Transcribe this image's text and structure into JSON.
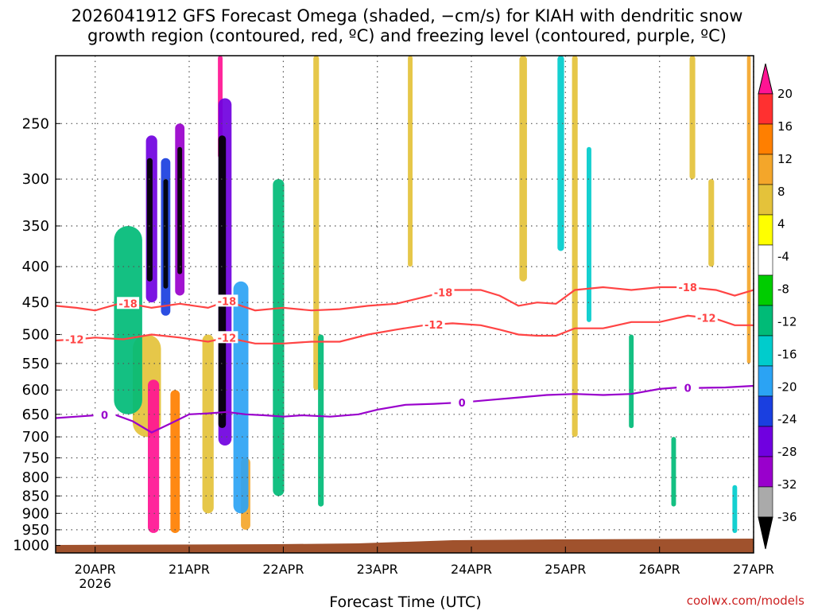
{
  "chart_data": {
    "type": "heatmap",
    "title_line1": "2026041912 GFS Forecast Omega (shaded, −cm/s) for KIAH with dendritic snow",
    "title_line2": "growth region (contoured, red, ºC) and freezing level (contoured, purple, ºC)",
    "xlabel": "Forecast Time (UTC)",
    "ylabel": "",
    "credit": "coolwx.com/models",
    "x_ticks": [
      {
        "value": 0,
        "label": "20APR",
        "sub": "2026"
      },
      {
        "value": 1,
        "label": "21APR",
        "sub": ""
      },
      {
        "value": 2,
        "label": "22APR",
        "sub": ""
      },
      {
        "value": 3,
        "label": "23APR",
        "sub": ""
      },
      {
        "value": 4,
        "label": "24APR",
        "sub": ""
      },
      {
        "value": 5,
        "label": "25APR",
        "sub": ""
      },
      {
        "value": 6,
        "label": "26APR",
        "sub": ""
      },
      {
        "value": 7,
        "label": "27APR",
        "sub": ""
      }
    ],
    "xlim": [
      -0.42,
      7.0
    ],
    "y_ticks": [
      "250",
      "300",
      "350",
      "400",
      "450",
      "500",
      "550",
      "600",
      "650",
      "700",
      "750",
      "800",
      "850",
      "900",
      "950",
      "1000"
    ],
    "ylim": [
      200,
      1025
    ],
    "grid": true,
    "colorbar": {
      "labels": [
        "20",
        "16",
        "12",
        "8",
        "4",
        "-4",
        "-8",
        "-12",
        "-16",
        "-20",
        "-24",
        "-28",
        "-32",
        "-36"
      ],
      "colors": [
        "#ff1493",
        "#ff3030",
        "#ff7f00",
        "#f4a62a",
        "#e4c23a",
        "#ffff00",
        "#ffffff",
        "#00cc00",
        "#00bb77",
        "#00cccc",
        "#2ba3f4",
        "#1a3fe0",
        "#7000e0",
        "#9900cc",
        "#aaaaaa",
        "#000000"
      ]
    },
    "omega_features": [
      {
        "t": 0.58,
        "p1": 280,
        "p2": 420,
        "w": 0.06,
        "value": -36
      },
      {
        "t": 0.6,
        "p1": 260,
        "p2": 450,
        "w": 0.12,
        "value": -24
      },
      {
        "t": 0.75,
        "p1": 300,
        "p2": 430,
        "w": 0.05,
        "value": -36
      },
      {
        "t": 0.75,
        "p1": 280,
        "p2": 470,
        "w": 0.1,
        "value": -20
      },
      {
        "t": 0.9,
        "p1": 270,
        "p2": 410,
        "w": 0.05,
        "value": -36
      },
      {
        "t": 0.9,
        "p1": 250,
        "p2": 440,
        "w": 0.1,
        "value": -28
      },
      {
        "t": 1.35,
        "p1": 260,
        "p2": 680,
        "w": 0.08,
        "value": -36
      },
      {
        "t": 1.38,
        "p1": 230,
        "p2": 720,
        "w": 0.14,
        "value": -24
      },
      {
        "t": 1.55,
        "p1": 420,
        "p2": 900,
        "w": 0.16,
        "value": -16
      },
      {
        "t": 0.35,
        "p1": 350,
        "p2": 650,
        "w": 0.3,
        "value": -8
      },
      {
        "t": 1.95,
        "p1": 300,
        "p2": 850,
        "w": 0.12,
        "value": -8
      },
      {
        "t": 2.4,
        "p1": 500,
        "p2": 880,
        "w": 0.06,
        "value": -8
      },
      {
        "t": 0.62,
        "p1": 580,
        "p2": 960,
        "w": 0.12,
        "value": 20
      },
      {
        "t": 0.85,
        "p1": 600,
        "p2": 960,
        "w": 0.1,
        "value": 12
      },
      {
        "t": 1.33,
        "p1": 200,
        "p2": 280,
        "w": 0.05,
        "value": 20
      },
      {
        "t": 0.55,
        "p1": 500,
        "p2": 700,
        "w": 0.3,
        "value": 6
      },
      {
        "t": 1.2,
        "p1": 500,
        "p2": 900,
        "w": 0.12,
        "value": 6
      },
      {
        "t": 1.6,
        "p1": 750,
        "p2": 950,
        "w": 0.1,
        "value": 10
      },
      {
        "t": 2.35,
        "p1": 200,
        "p2": 600,
        "w": 0.06,
        "value": 5
      },
      {
        "t": 3.35,
        "p1": 200,
        "p2": 400,
        "w": 0.05,
        "value": 5
      },
      {
        "t": 4.55,
        "p1": 200,
        "p2": 420,
        "w": 0.08,
        "value": 5
      },
      {
        "t": 4.95,
        "p1": 200,
        "p2": 380,
        "w": 0.07,
        "value": -14
      },
      {
        "t": 5.1,
        "p1": 200,
        "p2": 700,
        "w": 0.06,
        "value": 5
      },
      {
        "t": 5.25,
        "p1": 270,
        "p2": 480,
        "w": 0.05,
        "value": -12
      },
      {
        "t": 5.7,
        "p1": 500,
        "p2": 680,
        "w": 0.05,
        "value": -8
      },
      {
        "t": 6.15,
        "p1": 700,
        "p2": 880,
        "w": 0.05,
        "value": -8
      },
      {
        "t": 6.35,
        "p1": 200,
        "p2": 300,
        "w": 0.06,
        "value": 5
      },
      {
        "t": 6.55,
        "p1": 300,
        "p2": 400,
        "w": 0.06,
        "value": 5
      },
      {
        "t": 6.8,
        "p1": 820,
        "p2": 960,
        "w": 0.05,
        "value": -14
      },
      {
        "t": 6.95,
        "p1": 200,
        "p2": 550,
        "w": 0.04,
        "value": 8
      }
    ],
    "series": [
      {
        "name": "-18",
        "color": "#ff4444",
        "label_positions": [
          0.35,
          1.4,
          3.7,
          6.3
        ],
        "x": [
          -0.42,
          -0.2,
          0.0,
          0.3,
          0.6,
          0.9,
          1.2,
          1.4,
          1.7,
          2.0,
          2.3,
          2.6,
          2.9,
          3.2,
          3.5,
          3.8,
          4.1,
          4.3,
          4.5,
          4.7,
          4.9,
          5.1,
          5.4,
          5.7,
          6.0,
          6.3,
          6.6,
          6.8,
          7.0
        ],
        "y": [
          455,
          458,
          462,
          450,
          458,
          452,
          458,
          448,
          462,
          458,
          462,
          460,
          455,
          452,
          442,
          432,
          432,
          440,
          455,
          450,
          452,
          432,
          428,
          432,
          428,
          428,
          432,
          440,
          432
        ]
      },
      {
        "name": "-12",
        "color": "#ff4444",
        "label_positions": [
          -0.22,
          1.4,
          3.6,
          6.5
        ],
        "x": [
          -0.42,
          -0.2,
          0.0,
          0.3,
          0.6,
          0.9,
          1.2,
          1.4,
          1.7,
          2.0,
          2.3,
          2.6,
          2.9,
          3.2,
          3.5,
          3.8,
          4.1,
          4.3,
          4.5,
          4.7,
          4.9,
          5.1,
          5.4,
          5.7,
          6.0,
          6.3,
          6.6,
          6.8,
          7.0
        ],
        "y": [
          510,
          508,
          505,
          508,
          500,
          505,
          512,
          505,
          515,
          515,
          512,
          512,
          500,
          492,
          485,
          482,
          485,
          492,
          500,
          502,
          502,
          490,
          490,
          480,
          480,
          470,
          475,
          485,
          485
        ]
      },
      {
        "name": "0",
        "color": "#9900cc",
        "label_positions": [
          0.1,
          3.9,
          6.3
        ],
        "x": [
          -0.42,
          -0.2,
          0.0,
          0.2,
          0.4,
          0.6,
          0.8,
          1.0,
          1.2,
          1.4,
          1.6,
          1.8,
          2.0,
          2.2,
          2.5,
          2.8,
          3.0,
          3.3,
          3.6,
          3.9,
          4.2,
          4.5,
          4.8,
          5.1,
          5.4,
          5.7,
          6.0,
          6.2,
          6.4,
          6.7,
          7.0
        ],
        "y": [
          658,
          655,
          652,
          650,
          665,
          690,
          670,
          650,
          648,
          645,
          650,
          652,
          655,
          652,
          655,
          650,
          640,
          630,
          628,
          625,
          620,
          615,
          610,
          608,
          610,
          608,
          598,
          595,
          596,
          595,
          592
        ]
      }
    ]
  }
}
